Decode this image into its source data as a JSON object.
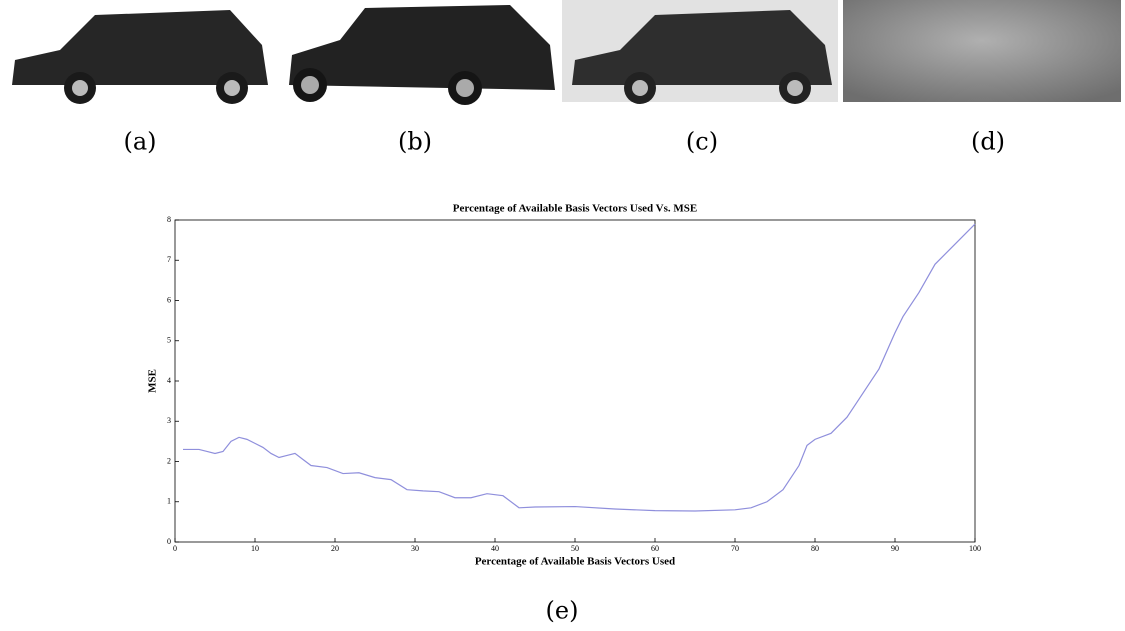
{
  "panel_labels": [
    "(a)",
    "(b)",
    "(c)",
    "(d)",
    "(e)"
  ],
  "chart_data": {
    "type": "line",
    "title": "Percentage of Available Basis Vectors Used Vs. MSE",
    "x_label": "Percentage of Available Basis Vectors Used",
    "y_label": "MSE",
    "x": [
      1,
      3,
      4,
      5,
      6,
      7,
      8,
      9,
      10,
      11,
      12,
      13,
      14,
      15,
      16,
      17,
      19,
      21,
      23,
      25,
      27,
      29,
      31,
      33,
      35,
      37,
      39,
      41,
      43,
      45,
      50,
      55,
      60,
      65,
      70,
      72,
      74,
      76,
      78,
      79,
      80,
      82,
      84,
      85,
      88,
      90,
      91,
      93,
      95,
      97,
      100
    ],
    "series": [
      {
        "name": "MSE",
        "color": "#8f8fdc",
        "values": [
          2.3,
          2.3,
          2.25,
          2.2,
          2.25,
          2.5,
          2.6,
          2.55,
          2.45,
          2.35,
          2.2,
          2.1,
          2.15,
          2.2,
          2.05,
          1.9,
          1.85,
          1.7,
          1.72,
          1.6,
          1.55,
          1.3,
          1.27,
          1.25,
          1.1,
          1.1,
          1.2,
          1.15,
          0.85,
          0.87,
          0.88,
          0.82,
          0.78,
          0.77,
          0.8,
          0.85,
          1.0,
          1.3,
          1.9,
          2.4,
          2.55,
          2.7,
          3.1,
          3.4,
          4.3,
          5.2,
          5.6,
          6.2,
          6.9,
          7.3,
          7.9
        ]
      }
    ],
    "xlim": [
      0,
      100
    ],
    "xticks": [
      0,
      10,
      20,
      30,
      40,
      50,
      60,
      70,
      80,
      90,
      100
    ],
    "ylim": [
      0,
      8
    ],
    "yticks": [
      0,
      1,
      2,
      3,
      4,
      5,
      6,
      7,
      8
    ]
  }
}
